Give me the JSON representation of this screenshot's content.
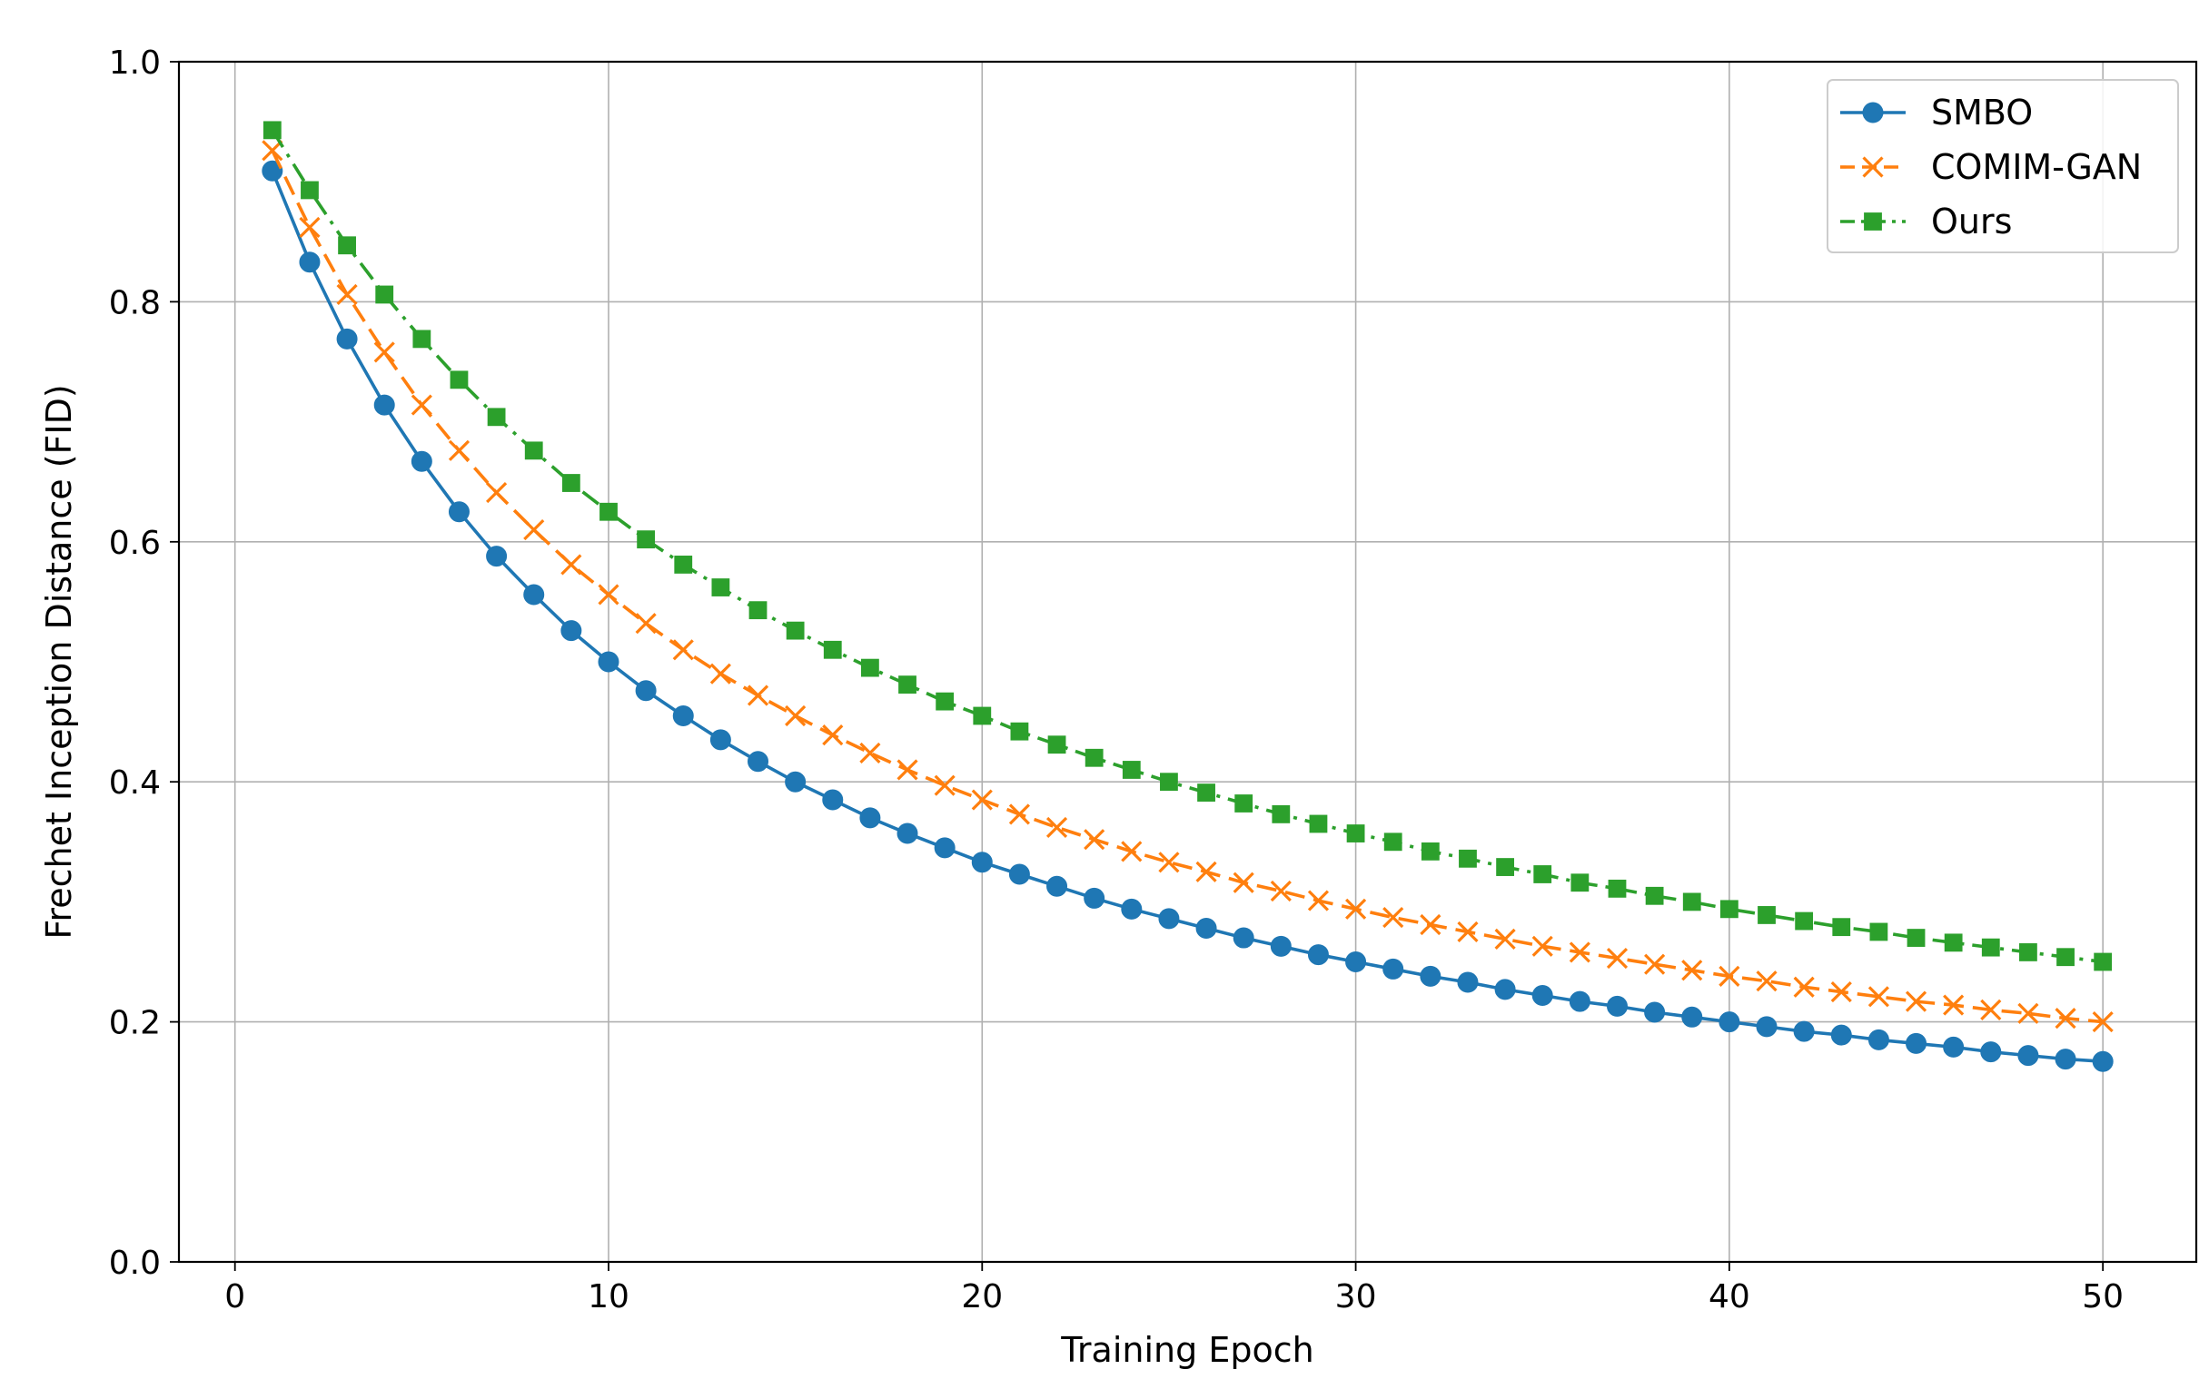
{
  "chart_data": {
    "type": "line",
    "title": "",
    "xlabel": "Training Epoch",
    "ylabel": "Frechet Inception Distance (FID)",
    "xlim": [
      -1.5,
      52.5
    ],
    "ylim": [
      0.0,
      1.0
    ],
    "xticks": [
      0,
      10,
      20,
      30,
      40,
      50
    ],
    "yticks": [
      0.0,
      0.2,
      0.4,
      0.6,
      0.8,
      1.0
    ],
    "xtick_labels": [
      "0",
      "10",
      "20",
      "30",
      "40",
      "50"
    ],
    "ytick_labels": [
      "0.0",
      "0.2",
      "0.4",
      "0.6",
      "0.8",
      "1.0"
    ],
    "grid": true,
    "legend_position": "top-right",
    "x": [
      1,
      2,
      3,
      4,
      5,
      6,
      7,
      8,
      9,
      10,
      11,
      12,
      13,
      14,
      15,
      16,
      17,
      18,
      19,
      20,
      21,
      22,
      23,
      24,
      25,
      26,
      27,
      28,
      29,
      30,
      31,
      32,
      33,
      34,
      35,
      36,
      37,
      38,
      39,
      40,
      41,
      42,
      43,
      44,
      45,
      46,
      47,
      48,
      49,
      50
    ],
    "series": [
      {
        "name": "SMBO",
        "color": "#1f77b4",
        "marker": "circle",
        "line_style": "solid",
        "values": [
          0.909,
          0.833,
          0.769,
          0.714,
          0.667,
          0.625,
          0.588,
          0.556,
          0.526,
          0.5,
          0.476,
          0.455,
          0.435,
          0.417,
          0.4,
          0.385,
          0.37,
          0.357,
          0.345,
          0.333,
          0.323,
          0.313,
          0.303,
          0.294,
          0.286,
          0.278,
          0.27,
          0.263,
          0.256,
          0.25,
          0.244,
          0.238,
          0.233,
          0.227,
          0.222,
          0.217,
          0.213,
          0.208,
          0.204,
          0.2,
          0.196,
          0.192,
          0.189,
          0.185,
          0.182,
          0.179,
          0.175,
          0.172,
          0.169,
          0.167
        ]
      },
      {
        "name": "COMIM-GAN",
        "color": "#ff7f0e",
        "marker": "x",
        "line_style": "dashed",
        "values": [
          0.926,
          0.862,
          0.806,
          0.758,
          0.714,
          0.676,
          0.641,
          0.61,
          0.581,
          0.556,
          0.532,
          0.51,
          0.49,
          0.472,
          0.455,
          0.439,
          0.424,
          0.41,
          0.397,
          0.385,
          0.373,
          0.362,
          0.352,
          0.342,
          0.333,
          0.325,
          0.316,
          0.309,
          0.301,
          0.294,
          0.287,
          0.281,
          0.275,
          0.269,
          0.263,
          0.258,
          0.253,
          0.248,
          0.243,
          0.238,
          0.234,
          0.229,
          0.225,
          0.221,
          0.217,
          0.214,
          0.21,
          0.207,
          0.203,
          0.2
        ]
      },
      {
        "name": "Ours",
        "color": "#2ca02c",
        "marker": "square",
        "line_style": "dash-dot",
        "values": [
          0.943,
          0.893,
          0.847,
          0.806,
          0.769,
          0.735,
          0.704,
          0.676,
          0.649,
          0.625,
          0.602,
          0.581,
          0.562,
          0.543,
          0.526,
          0.51,
          0.495,
          0.481,
          0.467,
          0.455,
          0.442,
          0.431,
          0.42,
          0.41,
          0.4,
          0.391,
          0.382,
          0.373,
          0.365,
          0.357,
          0.35,
          0.342,
          0.336,
          0.329,
          0.323,
          0.316,
          0.311,
          0.305,
          0.3,
          0.294,
          0.289,
          0.284,
          0.279,
          0.275,
          0.27,
          0.266,
          0.262,
          0.258,
          0.254,
          0.25
        ]
      }
    ]
  }
}
